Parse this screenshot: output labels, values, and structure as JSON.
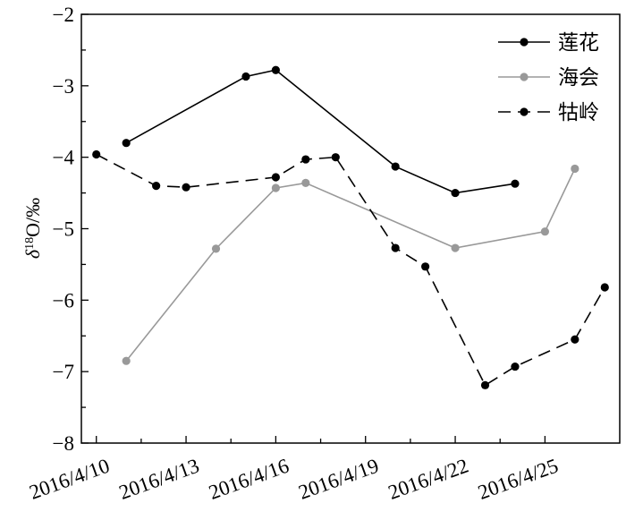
{
  "chart_data": {
    "type": "line",
    "ylabel": "δ¹⁸O/‰",
    "ylabel_parts": {
      "delta": "δ",
      "sup": "18",
      "rest": "O/‰"
    },
    "ylim": [
      -8,
      -2
    ],
    "yticks": [
      -8,
      -7,
      -6,
      -5,
      -4,
      -3,
      -2
    ],
    "ytick_labels": [
      "−8",
      "−7",
      "−6",
      "−5",
      "−4",
      "−3",
      "−2"
    ],
    "xlim": [
      "2016-04-09 12:00",
      "2016-04-27 12:00"
    ],
    "xticks": [
      "2016-04-10",
      "2016-04-13",
      "2016-04-16",
      "2016-04-19",
      "2016-04-22",
      "2016-04-25"
    ],
    "xtick_labels": [
      "2016/4/10",
      "2016/4/13",
      "2016/4/16",
      "2016/4/19",
      "2016/4/22",
      "2016/4/25"
    ],
    "legend_position": "top-right",
    "grid": false,
    "series": [
      {
        "name": "莲花",
        "color": "#000000",
        "dash": "solid",
        "points": [
          {
            "x": "2016-04-11",
            "y": -3.8
          },
          {
            "x": "2016-04-15",
            "y": -2.87
          },
          {
            "x": "2016-04-16",
            "y": -2.78
          },
          {
            "x": "2016-04-20",
            "y": -4.13
          },
          {
            "x": "2016-04-22",
            "y": -4.5
          },
          {
            "x": "2016-04-24",
            "y": -4.37
          }
        ]
      },
      {
        "name": "海会",
        "color": "#999999",
        "dash": "solid",
        "points": [
          {
            "x": "2016-04-11",
            "y": -6.85
          },
          {
            "x": "2016-04-14",
            "y": -5.28
          },
          {
            "x": "2016-04-16",
            "y": -4.43
          },
          {
            "x": "2016-04-17",
            "y": -4.36
          },
          {
            "x": "2016-04-22",
            "y": -5.27
          },
          {
            "x": "2016-04-25",
            "y": -5.04
          },
          {
            "x": "2016-04-26",
            "y": -4.16
          }
        ]
      },
      {
        "name": "牯岭",
        "color": "#000000",
        "dash": "dashed",
        "points": [
          {
            "x": "2016-04-10",
            "y": -3.96
          },
          {
            "x": "2016-04-12",
            "y": -4.4
          },
          {
            "x": "2016-04-13",
            "y": -4.42
          },
          {
            "x": "2016-04-16",
            "y": -4.28
          },
          {
            "x": "2016-04-17",
            "y": -4.03
          },
          {
            "x": "2016-04-18",
            "y": -4.0
          },
          {
            "x": "2016-04-20",
            "y": -5.27
          },
          {
            "x": "2016-04-21",
            "y": -5.53
          },
          {
            "x": "2016-04-23",
            "y": -7.19
          },
          {
            "x": "2016-04-24",
            "y": -6.93
          },
          {
            "x": "2016-04-26",
            "y": -6.55
          },
          {
            "x": "2016-04-27",
            "y": -5.82
          }
        ]
      }
    ]
  }
}
